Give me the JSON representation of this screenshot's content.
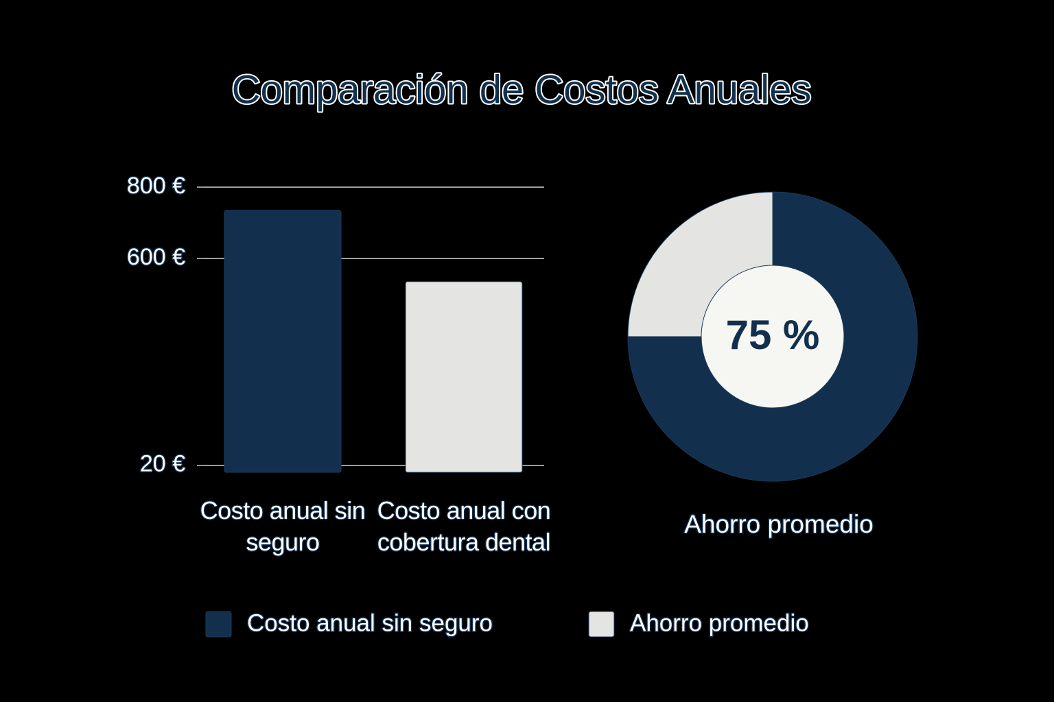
{
  "title": "Comparación de Costos Anuales",
  "chart_data": [
    {
      "type": "bar",
      "categories": [
        "Costo anual sin seguro",
        "Costo anual con cobertura dental"
      ],
      "values": [
        735,
        535
      ],
      "colors": [
        "#12304d",
        "#e4e4e2"
      ],
      "ylim": [
        0,
        850
      ],
      "yticks": [
        {
          "value": 800,
          "label": "800 €"
        },
        {
          "value": 600,
          "label": "600 €"
        },
        {
          "value": 20,
          "label": "20 €"
        }
      ],
      "grid": true
    },
    {
      "type": "pie",
      "label": "Ahorro promedio",
      "values": [
        75,
        25
      ],
      "colors": [
        "#12304d",
        "#e4e4e2"
      ],
      "center_label": "75 %",
      "donut": true
    }
  ],
  "legend": [
    {
      "name": "Costo anual sin seguro",
      "color": "#12304d"
    },
    {
      "name": "Ahorro promedio",
      "color": "#e4e4e2"
    }
  ]
}
